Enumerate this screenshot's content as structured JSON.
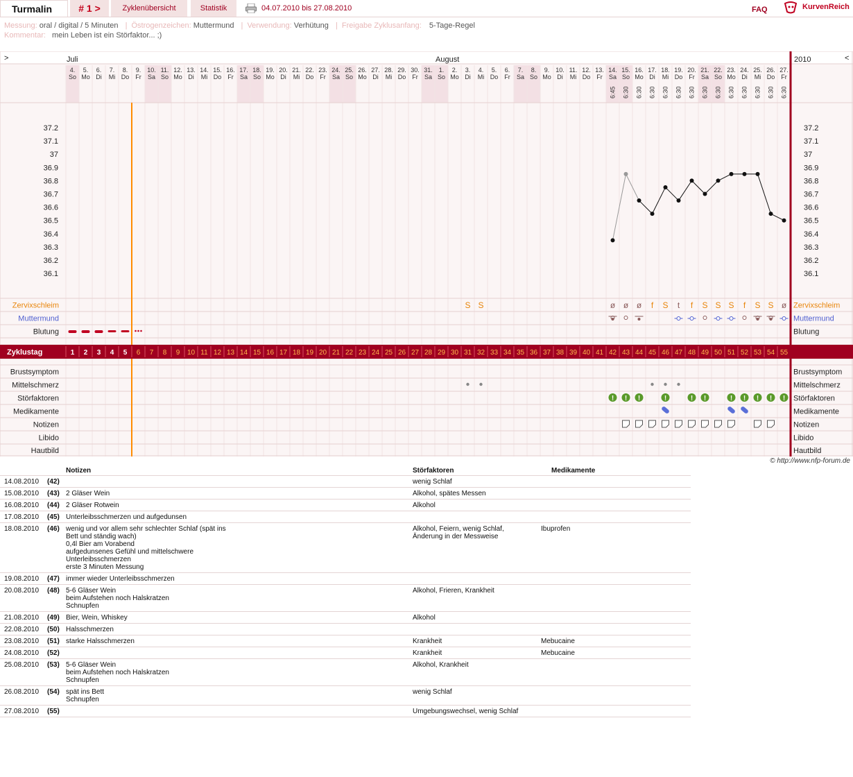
{
  "tabs": {
    "brand": "Turmalin",
    "cycle_nav": "# 1 >",
    "overview": "Zyklenübersicht",
    "stats": "Statistik",
    "date_range": "04.07.2010 bis 27.08.2010",
    "faq": "FAQ",
    "logo": "KurvenReich"
  },
  "info": {
    "measure_label": "Messung:",
    "measure_value": "oral / digital / 5 Minuten",
    "estrogen_label": "Östrogenzeichen:",
    "estrogen_value": "Muttermund",
    "usage_label": "Verwendung:",
    "usage_value": "Verhütung",
    "release_label": "Freigabe Zyklusanfang:",
    "release_value": "5-Tage-Regel",
    "comment_label": "Kommentar:",
    "comment_value": "mein Leben ist ein Störfaktor... ;)"
  },
  "chart_data": {
    "type": "line",
    "title": "",
    "xlabel": "",
    "ylabel": "",
    "ylim": [
      36.1,
      37.2
    ],
    "y_ticks": [
      "37.2",
      "37.1",
      "37",
      "36.9",
      "36.8",
      "36.7",
      "36.6",
      "36.5",
      "36.4",
      "36.3",
      "36.2",
      "36.1"
    ],
    "months": [
      "Juli",
      "August"
    ],
    "year": "2010",
    "nav_left": ">",
    "nav_right": "<",
    "days": [
      [
        "4.",
        "So"
      ],
      [
        "5.",
        "Mo"
      ],
      [
        "6.",
        "Di"
      ],
      [
        "7.",
        "Mi"
      ],
      [
        "8.",
        "Do"
      ],
      [
        "9.",
        "Fr"
      ],
      [
        "10.",
        "Sa"
      ],
      [
        "11.",
        "So"
      ],
      [
        "12.",
        "Mo"
      ],
      [
        "13.",
        "Di"
      ],
      [
        "14.",
        "Mi"
      ],
      [
        "15.",
        "Do"
      ],
      [
        "16.",
        "Fr"
      ],
      [
        "17.",
        "Sa"
      ],
      [
        "18.",
        "So"
      ],
      [
        "19.",
        "Mo"
      ],
      [
        "20.",
        "Di"
      ],
      [
        "21.",
        "Mi"
      ],
      [
        "22.",
        "Do"
      ],
      [
        "23.",
        "Fr"
      ],
      [
        "24.",
        "Sa"
      ],
      [
        "25.",
        "So"
      ],
      [
        "26.",
        "Mo"
      ],
      [
        "27.",
        "Di"
      ],
      [
        "28.",
        "Mi"
      ],
      [
        "29.",
        "Do"
      ],
      [
        "30.",
        "Fr"
      ],
      [
        "31.",
        "Sa"
      ],
      [
        "1.",
        "So"
      ],
      [
        "2.",
        "Mo"
      ],
      [
        "3.",
        "Di"
      ],
      [
        "4.",
        "Mi"
      ],
      [
        "5.",
        "Do"
      ],
      [
        "6.",
        "Fr"
      ],
      [
        "7.",
        "Sa"
      ],
      [
        "8.",
        "So"
      ],
      [
        "9.",
        "Mo"
      ],
      [
        "10.",
        "Di"
      ],
      [
        "11.",
        "Mi"
      ],
      [
        "12.",
        "Do"
      ],
      [
        "13.",
        "Fr"
      ],
      [
        "14.",
        "Sa"
      ],
      [
        "15.",
        "So"
      ],
      [
        "16.",
        "Mo"
      ],
      [
        "17.",
        "Di"
      ],
      [
        "18.",
        "Mi"
      ],
      [
        "19.",
        "Do"
      ],
      [
        "20.",
        "Fr"
      ],
      [
        "21.",
        "Sa"
      ],
      [
        "22.",
        "So"
      ],
      [
        "23.",
        "Mo"
      ],
      [
        "24.",
        "Di"
      ],
      [
        "25.",
        "Mi"
      ],
      [
        "26.",
        "Do"
      ],
      [
        "27.",
        "Fr"
      ]
    ],
    "weekend_days": [
      1,
      7,
      8,
      14,
      15,
      21,
      22,
      28,
      29,
      35,
      36,
      42,
      43,
      49,
      50
    ],
    "times": {
      "42": "6:45",
      "43": "6:30",
      "44": "6:30",
      "45": "6:30",
      "46": "6:30",
      "47": "6:30",
      "48": "6:30",
      "49": "6:30",
      "50": "6:30",
      "51": "6:30",
      "52": "6:30",
      "53": "6:30",
      "54": "6:30",
      "55": "6:30"
    },
    "series": [
      {
        "name": "Temperatur",
        "points": [
          [
            42,
            36.35
          ],
          [
            43,
            36.85
          ],
          [
            44,
            36.65
          ],
          [
            45,
            36.55
          ],
          [
            46,
            36.75
          ],
          [
            47,
            36.65
          ],
          [
            48,
            36.8
          ],
          [
            49,
            36.7
          ],
          [
            50,
            36.8
          ],
          [
            51,
            36.85
          ],
          [
            52,
            36.85
          ],
          [
            53,
            36.85
          ],
          [
            54,
            36.55
          ],
          [
            55,
            36.5
          ]
        ]
      }
    ],
    "excluded_points": [
      43
    ],
    "cycle_marker_day": 5,
    "cervical_mucus": {
      "31": "S",
      "32": "S",
      "42": "ø",
      "43": "ø",
      "44": "ø",
      "45": "f",
      "46": "S",
      "47": "t",
      "48": "f",
      "49": "S",
      "50": "S",
      "51": "S",
      "52": "f",
      "53": "S",
      "54": "S",
      "55": "ø"
    },
    "bleeding_days": [
      1,
      2,
      3,
      4,
      5
    ],
    "spotting_day": 6,
    "cycle_days": [
      "1",
      "2",
      "3",
      "4",
      "5",
      "6",
      "7",
      "8",
      "9",
      "10",
      "11",
      "12",
      "13",
      "14",
      "15",
      "16",
      "17",
      "18",
      "19",
      "20",
      "21",
      "22",
      "23",
      "24",
      "25",
      "26",
      "27",
      "28",
      "29",
      "30",
      "31",
      "32",
      "33",
      "34",
      "35",
      "36",
      "37",
      "38",
      "39",
      "40",
      "41",
      "42",
      "43",
      "44",
      "45",
      "46",
      "47",
      "48",
      "49",
      "50",
      "51",
      "52",
      "53",
      "54",
      "55"
    ],
    "cycle_day_label": "Zyklustag",
    "row_labels": {
      "mucus": "Zervixschleim",
      "cervix": "Muttermund",
      "bleeding": "Blutung",
      "breast": "Brustsymptom",
      "midpain": "Mittelschmerz",
      "disturb": "Störfaktoren",
      "meds": "Medikamente",
      "notes": "Notizen",
      "libido": "Libido",
      "skin": "Hautbild"
    },
    "midpain_days": [
      31,
      32,
      45,
      46,
      47
    ],
    "disturb_days": [
      42,
      43,
      44,
      46,
      48,
      49,
      51,
      52,
      53,
      54,
      55
    ],
    "meds_days": [
      46,
      51,
      52
    ],
    "notes_days": [
      43,
      44,
      45,
      46,
      47,
      48,
      49,
      50,
      51,
      53,
      54
    ],
    "copyright": "© http://www.nfp-forum.de"
  },
  "table": {
    "headers": {
      "notes": "Notizen",
      "disturb": "Störfaktoren",
      "meds": "Medikamente"
    },
    "rows": [
      {
        "date": "14.08.2010",
        "day": "(42)",
        "note": "",
        "disturb": "wenig Schlaf",
        "meds": ""
      },
      {
        "date": "15.08.2010",
        "day": "(43)",
        "note": "2 Gläser Wein",
        "disturb": "Alkohol, spätes Messen",
        "meds": ""
      },
      {
        "date": "16.08.2010",
        "day": "(44)",
        "note": "2 Gläser Rotwein",
        "disturb": "Alkohol",
        "meds": ""
      },
      {
        "date": "17.08.2010",
        "day": "(45)",
        "note": "Unterleibsschmerzen und aufgedunsen",
        "disturb": "",
        "meds": ""
      },
      {
        "date": "18.08.2010",
        "day": "(46)",
        "note": "wenig und vor allem sehr schlechter Schlaf (spät ins\nBett und ständig wach)\n0,4l Bier am Vorabend\naufgedunsenes Gefühl und mittelschwere\nUnterleibsschmerzen\n erste 3 Minuten Messung",
        "disturb": "Alkohol, Feiern, wenig Schlaf,\nÄnderung in der Messweise",
        "meds": "Ibuprofen"
      },
      {
        "date": "19.08.2010",
        "day": "(47)",
        "note": "immer wieder Unterleibsschmerzen",
        "disturb": "",
        "meds": ""
      },
      {
        "date": "20.08.2010",
        "day": "(48)",
        "note": "5-6 Gläser Wein\nbeim Aufstehen noch Halskratzen\nSchnupfen",
        "disturb": "Alkohol, Frieren, Krankheit",
        "meds": ""
      },
      {
        "date": "21.08.2010",
        "day": "(49)",
        "note": "Bier, Wein, Whiskey",
        "disturb": "Alkohol",
        "meds": ""
      },
      {
        "date": "22.08.2010",
        "day": "(50)",
        "note": "Halsschmerzen",
        "disturb": "",
        "meds": ""
      },
      {
        "date": "23.08.2010",
        "day": "(51)",
        "note": "starke Halsschmerzen",
        "disturb": "Krankheit",
        "meds": "Mebucaine"
      },
      {
        "date": "24.08.2010",
        "day": "(52)",
        "note": "",
        "disturb": "Krankheit",
        "meds": "Mebucaine"
      },
      {
        "date": "25.08.2010",
        "day": "(53)",
        "note": "5-6 Gläser Wein\nbeim Aufstehen noch Halskratzen\nSchnupfen",
        "disturb": "Alkohol, Krankheit",
        "meds": ""
      },
      {
        "date": "26.08.2010",
        "day": "(54)",
        "note": "spät ins Bett\nSchnupfen",
        "disturb": "wenig Schlaf",
        "meds": ""
      },
      {
        "date": "27.08.2010",
        "day": "(55)",
        "note": "",
        "disturb": "Umgebungswechsel, wenig Schlaf",
        "meds": ""
      }
    ]
  },
  "colors": {
    "accent": "#a00020",
    "grid": "#f2e4e4",
    "weekend": "#f3e0e4",
    "orange": "#ff8c00",
    "mucus": "#e8850a",
    "cervix": "#4f5fd0"
  }
}
